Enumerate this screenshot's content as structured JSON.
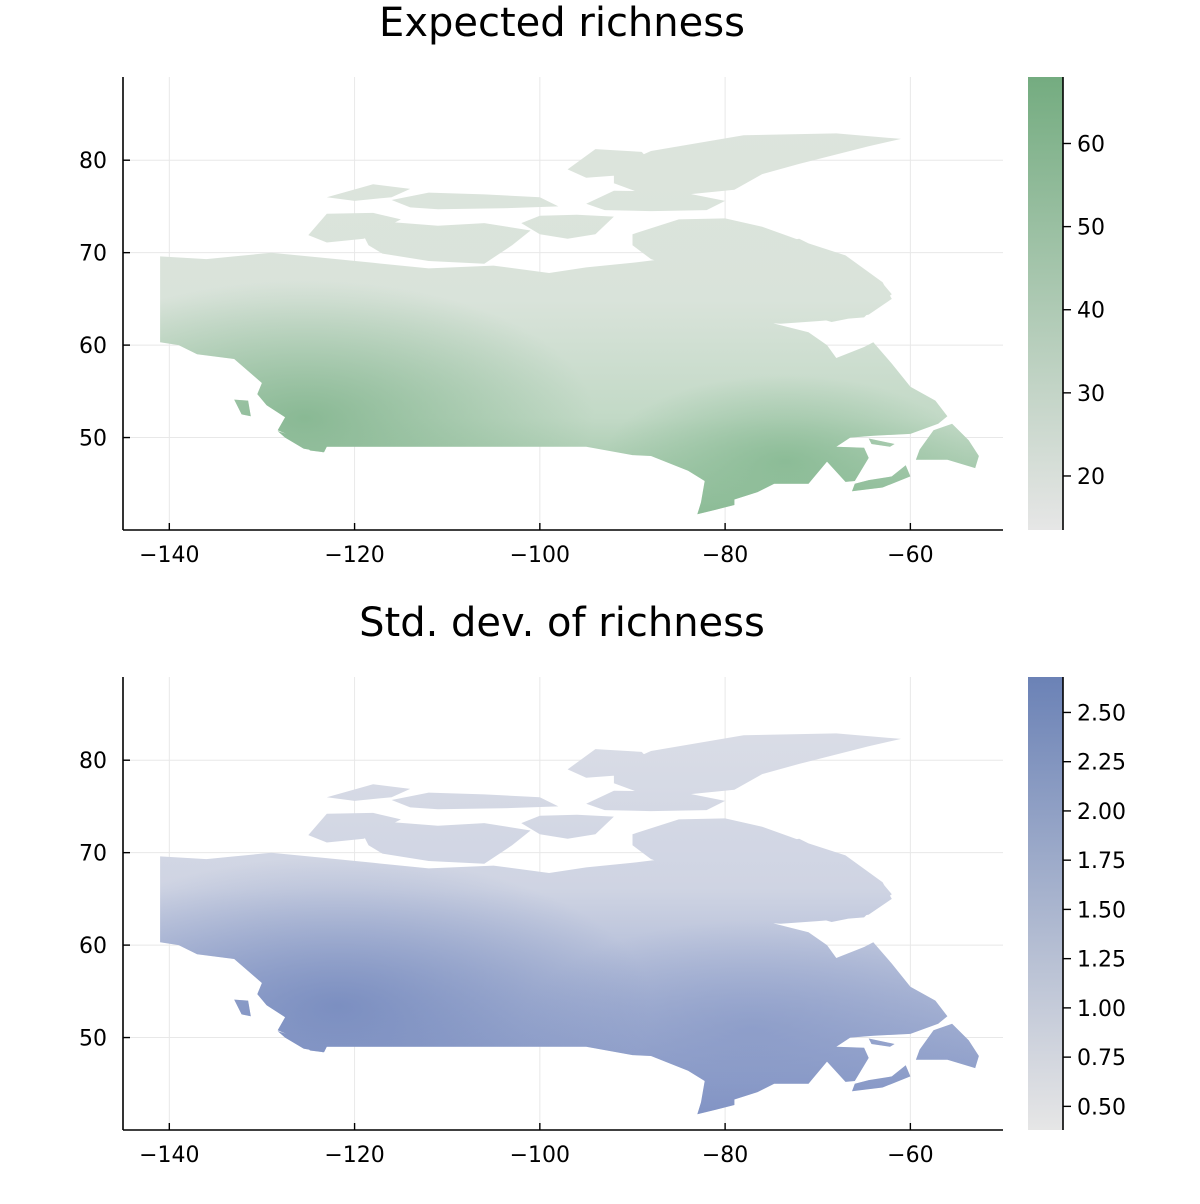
{
  "maps": [
    {
      "title": "Expected richness",
      "x_ticks": [
        -140,
        -120,
        -100,
        -80,
        -60
      ],
      "y_ticks": [
        50,
        60,
        70,
        80
      ],
      "x_range": [
        -145,
        -50
      ],
      "y_range": [
        40,
        89
      ],
      "colorbar": {
        "ticks": [
          20,
          30,
          40,
          50,
          60
        ],
        "range": [
          13.5,
          68
        ],
        "color_low": "#e6e6e6",
        "color_high": "#74ac80"
      },
      "field": {
        "low_color": "#e0e5e0",
        "mid_color": "#bcd6c0",
        "high_color": "#84b890",
        "rich_regions": [
          "west-coast",
          "southern-rockies",
          "great-lakes",
          "maritimes"
        ]
      }
    },
    {
      "title": "Std. dev. of richness",
      "x_ticks": [
        -140,
        -120,
        -100,
        -80,
        -60
      ],
      "y_ticks": [
        50,
        60,
        70,
        80
      ],
      "x_range": [
        -145,
        -50
      ],
      "y_range": [
        40,
        89
      ],
      "colorbar": {
        "ticks": [
          0.5,
          0.75,
          1.0,
          1.25,
          1.5,
          1.75,
          2.0,
          2.25,
          2.5
        ],
        "tick_labels": [
          "0.50",
          "0.75",
          "1.00",
          "1.25",
          "1.50",
          "1.75",
          "2.00",
          "2.25",
          "2.50"
        ],
        "range": [
          0.38,
          2.68
        ],
        "color_low": "#e6e6e6",
        "color_high": "#6b82b6"
      },
      "field": {
        "low_color": "#d9dce6",
        "mid_color": "#a9b5d4",
        "high_color": "#7589bd",
        "rich_regions": [
          "southern-prairies",
          "southern-rockies",
          "great-lakes"
        ]
      }
    }
  ]
}
